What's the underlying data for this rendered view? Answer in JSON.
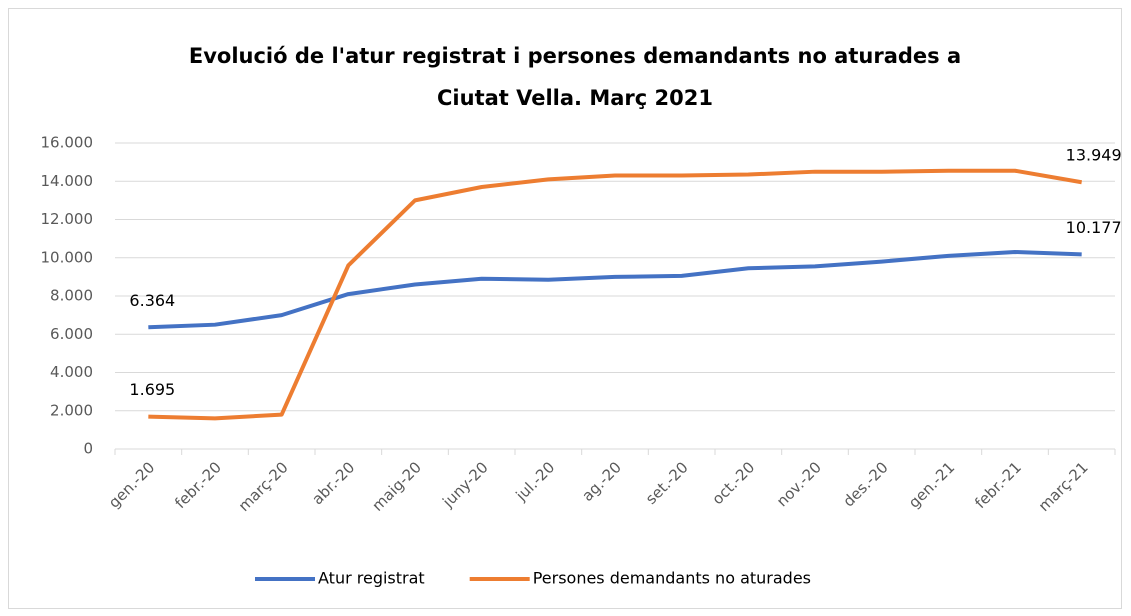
{
  "chart_data": {
    "type": "line",
    "title": [
      "Evolució de l'atur registrat i persones demandants no aturades a",
      "Ciutat Vella. Març 2021"
    ],
    "categories": [
      "gen.-20",
      "febr.-20",
      "març-20",
      "abr.-20",
      "maig-20",
      "juny-20",
      "jul.-20",
      "ag.-20",
      "set.-20",
      "oct.-20",
      "nov.-20",
      "des.-20",
      "gen.-21",
      "febr.-21",
      "març-21"
    ],
    "series": [
      {
        "name": "Atur registrat",
        "color": "#4472c4",
        "values": [
          6364,
          6500,
          7000,
          8100,
          8600,
          8900,
          8850,
          9000,
          9050,
          9450,
          9550,
          9800,
          10100,
          10300,
          10177
        ],
        "value_labels": [
          "6.364",
          null,
          null,
          null,
          null,
          null,
          null,
          null,
          null,
          null,
          null,
          null,
          null,
          null,
          "10.177"
        ]
      },
      {
        "name": "Persones demandants no aturades",
        "color": "#ed7d31",
        "values": [
          1695,
          1600,
          1800,
          9600,
          13000,
          13700,
          14100,
          14300,
          14300,
          14350,
          14500,
          14500,
          14550,
          14550,
          13949
        ],
        "value_labels": [
          "1.695",
          null,
          null,
          null,
          null,
          null,
          null,
          null,
          null,
          null,
          null,
          null,
          null,
          null,
          "13.949"
        ]
      }
    ],
    "ylim": [
      0,
      16000
    ],
    "yticks": [
      0,
      {
        "value": 2000,
        "label": "2.000"
      },
      {
        "value": 4000,
        "label": "4.000"
      },
      {
        "value": 6000,
        "label": "6.000"
      },
      {
        "value": 8000,
        "label": "8.000"
      },
      {
        "value": 10000,
        "label": "10.000"
      },
      {
        "value": 12000,
        "label": "12.000"
      },
      {
        "value": 14000,
        "label": "14.000"
      },
      {
        "value": 16000,
        "label": "16.000"
      }
    ],
    "grid": true,
    "legend": "bottom"
  }
}
